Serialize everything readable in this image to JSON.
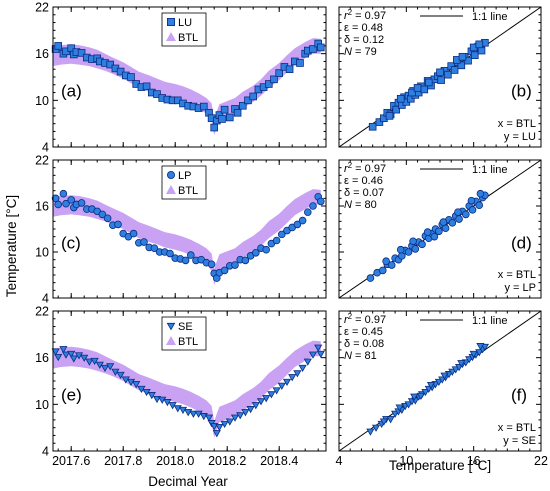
{
  "figure": {
    "y_axis_label": "Temperature [°C]",
    "x_axis_label_left": "Decimal Year",
    "x_axis_label_right": "Temperature [°C]",
    "time_ticks": [
      "2017.6",
      "2017.8",
      "2018.0",
      "2018.2",
      "2018.4"
    ],
    "temp_ticks": [
      "4",
      "10",
      "16",
      "22"
    ],
    "colors": {
      "band": "#c9a2f4",
      "marker": "#2f7fe0",
      "marker_edge": "#0a2c80",
      "axis": "#000000"
    }
  },
  "chart_data": [
    {
      "panel": "a",
      "panel_label": "(a)",
      "type": "scatter",
      "xlim": [
        2017.53,
        2018.58
      ],
      "ylim": [
        4,
        22
      ],
      "series": [
        {
          "name": "LU",
          "marker": "square"
        },
        {
          "name": "BTL",
          "marker": "band"
        }
      ],
      "btl_band": {
        "x": [
          2017.53,
          2017.56,
          2017.6,
          2017.63,
          2017.67,
          2017.7,
          2017.73,
          2017.76,
          2017.8,
          2017.83,
          2017.86,
          2017.9,
          2017.93,
          2017.96,
          2018.0,
          2018.03,
          2018.06,
          2018.09,
          2018.12,
          2018.14,
          2018.15,
          2018.16,
          2018.17,
          2018.2,
          2018.23,
          2018.26,
          2018.3,
          2018.33,
          2018.36,
          2018.4,
          2018.43,
          2018.46,
          2018.5,
          2018.53,
          2018.56
        ],
        "lower": [
          14.4,
          14.6,
          14.7,
          14.6,
          14.4,
          14.1,
          13.8,
          13.4,
          12.8,
          12.2,
          11.6,
          11.1,
          10.8,
          10.4,
          10.1,
          9.8,
          9.4,
          8.9,
          8.3,
          7.3,
          5.5,
          6.5,
          7.5,
          7.9,
          8.3,
          9.0,
          9.8,
          10.6,
          11.6,
          12.6,
          13.6,
          14.6,
          15.4,
          16.0,
          16.0
        ],
        "upper": [
          17.0,
          17.1,
          17.2,
          17.1,
          16.8,
          16.5,
          16.0,
          15.5,
          14.9,
          14.3,
          13.7,
          13.2,
          12.8,
          12.4,
          12.1,
          11.8,
          11.4,
          10.9,
          10.3,
          9.6,
          7.6,
          8.6,
          9.5,
          9.9,
          10.3,
          11.1,
          11.9,
          12.7,
          13.8,
          14.8,
          15.8,
          16.7,
          17.5,
          18.0,
          17.9
        ]
      },
      "observations": {
        "x": [
          2017.54,
          2017.55,
          2017.57,
          2017.58,
          2017.6,
          2017.61,
          2017.62,
          2017.64,
          2017.66,
          2017.68,
          2017.7,
          2017.71,
          2017.73,
          2017.75,
          2017.77,
          2017.79,
          2017.81,
          2017.83,
          2017.85,
          2017.87,
          2017.89,
          2017.91,
          2017.93,
          2017.95,
          2017.97,
          2017.99,
          2018.01,
          2018.03,
          2018.05,
          2018.07,
          2018.09,
          2018.11,
          2018.13,
          2018.14,
          2018.15,
          2018.16,
          2018.17,
          2018.18,
          2018.19,
          2018.21,
          2018.23,
          2018.24,
          2018.26,
          2018.28,
          2018.3,
          2018.32,
          2018.34,
          2018.36,
          2018.38,
          2018.4,
          2018.42,
          2018.44,
          2018.46,
          2018.48,
          2018.5,
          2018.51,
          2018.53,
          2018.55,
          2018.56
        ],
        "y": [
          16.6,
          17.0,
          16.0,
          16.3,
          16.7,
          15.9,
          16.2,
          16.1,
          15.5,
          15.3,
          15.4,
          15.0,
          14.8,
          14.6,
          14.1,
          13.7,
          13.2,
          13.0,
          12.1,
          11.7,
          11.8,
          11.0,
          10.8,
          10.3,
          10.1,
          10.0,
          10.0,
          9.6,
          9.3,
          9.2,
          9.0,
          9.2,
          8.4,
          7.7,
          6.5,
          7.4,
          8.1,
          7.6,
          8.8,
          7.8,
          8.9,
          8.4,
          9.3,
          10.0,
          10.5,
          11.4,
          11.7,
          12.1,
          12.7,
          13.5,
          14.3,
          14.0,
          15.0,
          14.8,
          16.0,
          16.4,
          16.6,
          17.3,
          16.8
        ]
      }
    },
    {
      "panel": "b",
      "panel_label": "(b)",
      "type": "scatter",
      "xlim": [
        4,
        22
      ],
      "ylim": [
        4,
        22
      ],
      "stats": {
        "r2": "0.97",
        "eps": "0.48",
        "delta": "0.12",
        "n": "79"
      },
      "legend": "1:1 line",
      "axis_note": [
        "x = BTL",
        "y = LU"
      ],
      "marker": "square",
      "observations": {
        "x": [
          7.0,
          7.6,
          8.0,
          8.3,
          8.6,
          8.9,
          9.1,
          9.3,
          9.6,
          9.8,
          10.0,
          10.2,
          10.4,
          10.6,
          10.8,
          11.1,
          11.3,
          11.6,
          11.9,
          12.2,
          12.5,
          12.8,
          13.1,
          13.4,
          13.7,
          14.0,
          14.3,
          14.6,
          14.9,
          15.2,
          15.5,
          15.8,
          16.1,
          16.4,
          16.7,
          17.0,
          9.5,
          10.5,
          12.0,
          13.0,
          14.5,
          15.0,
          16.0,
          16.5,
          8.5,
          11.0
        ],
        "y": [
          6.6,
          7.2,
          7.7,
          8.4,
          8.2,
          9.3,
          8.8,
          9.7,
          9.4,
          10.4,
          9.8,
          10.6,
          10.2,
          11.2,
          10.7,
          11.0,
          11.8,
          11.4,
          12.5,
          11.9,
          12.7,
          13.1,
          12.6,
          13.8,
          13.3,
          14.4,
          13.9,
          14.9,
          14.5,
          15.6,
          15.1,
          16.3,
          15.8,
          16.9,
          16.4,
          17.4,
          10.2,
          11.0,
          12.3,
          13.6,
          15.2,
          15.6,
          16.8,
          17.2,
          8.0,
          11.6
        ]
      }
    },
    {
      "panel": "c",
      "panel_label": "(c)",
      "type": "scatter",
      "xlim": [
        2017.53,
        2018.58
      ],
      "ylim": [
        4,
        22
      ],
      "series": [
        {
          "name": "LP",
          "marker": "circle"
        },
        {
          "name": "BTL",
          "marker": "band"
        }
      ],
      "btl_band": {
        "x": [
          2017.53,
          2017.56,
          2017.6,
          2017.63,
          2017.67,
          2017.7,
          2017.73,
          2017.76,
          2017.8,
          2017.83,
          2017.86,
          2017.9,
          2017.93,
          2017.96,
          2018.0,
          2018.03,
          2018.06,
          2018.09,
          2018.12,
          2018.14,
          2018.15,
          2018.16,
          2018.17,
          2018.2,
          2018.23,
          2018.26,
          2018.3,
          2018.33,
          2018.36,
          2018.4,
          2018.43,
          2018.46,
          2018.5,
          2018.53,
          2018.56
        ],
        "lower": [
          14.6,
          14.8,
          14.9,
          14.8,
          14.6,
          14.3,
          14.0,
          13.6,
          13.0,
          12.4,
          11.8,
          11.3,
          11.0,
          10.6,
          10.3,
          10.0,
          9.6,
          9.1,
          8.5,
          7.5,
          5.7,
          6.7,
          7.7,
          8.1,
          8.5,
          9.2,
          10.0,
          10.8,
          11.8,
          12.8,
          13.8,
          14.8,
          15.6,
          16.2,
          16.2
        ],
        "upper": [
          17.2,
          17.3,
          17.4,
          17.3,
          17.0,
          16.7,
          16.2,
          15.7,
          15.1,
          14.5,
          13.9,
          13.4,
          13.0,
          12.6,
          12.3,
          12.0,
          11.6,
          11.1,
          10.5,
          9.8,
          7.8,
          8.8,
          9.7,
          10.1,
          10.5,
          11.3,
          12.1,
          12.9,
          14.0,
          15.0,
          16.0,
          16.9,
          17.7,
          18.2,
          18.1
        ]
      },
      "observations": {
        "x": [
          2017.54,
          2017.55,
          2017.57,
          2017.58,
          2017.6,
          2017.61,
          2017.62,
          2017.64,
          2017.66,
          2017.68,
          2017.7,
          2017.72,
          2017.74,
          2017.76,
          2017.78,
          2017.8,
          2017.82,
          2017.84,
          2017.86,
          2017.88,
          2017.9,
          2017.92,
          2017.94,
          2017.96,
          2017.98,
          2018.0,
          2018.02,
          2018.04,
          2018.06,
          2018.08,
          2018.1,
          2018.12,
          2018.14,
          2018.15,
          2018.16,
          2018.17,
          2018.19,
          2018.21,
          2018.23,
          2018.25,
          2018.27,
          2018.29,
          2018.31,
          2018.33,
          2018.35,
          2018.37,
          2018.39,
          2018.41,
          2018.43,
          2018.45,
          2018.47,
          2018.49,
          2018.51,
          2018.53,
          2018.55,
          2018.56
        ],
        "y": [
          17.0,
          16.2,
          17.6,
          16.3,
          16.8,
          15.8,
          16.2,
          16.4,
          15.6,
          15.6,
          15.3,
          14.9,
          14.4,
          13.5,
          13.6,
          12.4,
          12.0,
          12.4,
          11.2,
          11.3,
          10.6,
          10.5,
          10.0,
          10.0,
          9.8,
          9.2,
          9.1,
          8.9,
          9.6,
          8.9,
          9.0,
          8.6,
          8.4,
          7.2,
          6.6,
          7.3,
          7.6,
          8.2,
          8.3,
          9.0,
          8.9,
          9.5,
          9.9,
          10.5,
          10.3,
          11.1,
          11.5,
          12.3,
          12.8,
          13.2,
          13.6,
          14.1,
          15.2,
          16.0,
          17.2,
          16.6
        ]
      }
    },
    {
      "panel": "d",
      "panel_label": "(d)",
      "type": "scatter",
      "xlim": [
        4,
        22
      ],
      "ylim": [
        4,
        22
      ],
      "stats": {
        "r2": "0.97",
        "eps": "0.46",
        "delta": "0.07",
        "n": "80"
      },
      "legend": "1:1 line",
      "axis_note": [
        "x = BTL",
        "y = LP"
      ],
      "marker": "circle",
      "observations": {
        "x": [
          6.8,
          7.4,
          7.9,
          8.3,
          8.7,
          9.0,
          9.3,
          9.6,
          9.9,
          10.2,
          10.5,
          10.8,
          11.1,
          11.4,
          11.7,
          12.0,
          12.3,
          12.6,
          12.9,
          13.2,
          13.5,
          13.8,
          14.1,
          14.4,
          14.7,
          15.0,
          15.3,
          15.6,
          15.9,
          16.2,
          16.5,
          16.8,
          17.0,
          9.5,
          10.6,
          11.9,
          13.3,
          14.6,
          15.8,
          16.6,
          8.2,
          12.5
        ],
        "y": [
          6.6,
          7.3,
          7.6,
          8.4,
          8.3,
          9.2,
          9.0,
          9.5,
          10.2,
          10.0,
          10.8,
          10.4,
          11.3,
          11.0,
          12.1,
          11.8,
          12.4,
          13.0,
          12.7,
          13.6,
          13.1,
          14.2,
          13.8,
          14.7,
          14.3,
          15.3,
          14.9,
          16.0,
          15.5,
          16.6,
          16.1,
          17.1,
          17.4,
          10.3,
          11.4,
          12.6,
          13.9,
          15.2,
          16.7,
          17.6,
          8.8,
          12.0
        ]
      }
    },
    {
      "panel": "e",
      "panel_label": "(e)",
      "type": "scatter",
      "xlim": [
        2017.53,
        2018.58
      ],
      "ylim": [
        4,
        22
      ],
      "series": [
        {
          "name": "SE",
          "marker": "triangle-down"
        },
        {
          "name": "BTL",
          "marker": "band"
        }
      ],
      "btl_band": {
        "x": [
          2017.53,
          2017.56,
          2017.6,
          2017.63,
          2017.67,
          2017.7,
          2017.73,
          2017.76,
          2017.8,
          2017.83,
          2017.86,
          2017.9,
          2017.93,
          2017.96,
          2018.0,
          2018.03,
          2018.06,
          2018.09,
          2018.12,
          2018.14,
          2018.15,
          2018.16,
          2018.17,
          2018.2,
          2018.23,
          2018.26,
          2018.3,
          2018.33,
          2018.36,
          2018.4,
          2018.43,
          2018.46,
          2018.5,
          2018.53,
          2018.56
        ],
        "lower": [
          14.6,
          14.8,
          14.9,
          14.8,
          14.6,
          14.3,
          14.0,
          13.6,
          13.0,
          12.4,
          11.8,
          11.3,
          11.0,
          10.6,
          10.3,
          10.0,
          9.6,
          9.1,
          8.5,
          7.5,
          5.7,
          6.7,
          7.7,
          8.1,
          8.5,
          9.2,
          10.0,
          10.8,
          11.8,
          12.8,
          13.8,
          14.8,
          15.6,
          16.2,
          16.2
        ],
        "upper": [
          17.2,
          17.3,
          17.4,
          17.3,
          17.0,
          16.7,
          16.2,
          15.7,
          15.1,
          14.5,
          13.9,
          13.4,
          13.0,
          12.6,
          12.3,
          12.0,
          11.6,
          11.1,
          10.5,
          9.8,
          7.8,
          8.8,
          9.7,
          10.1,
          10.5,
          11.3,
          12.1,
          12.9,
          14.0,
          15.0,
          16.0,
          16.9,
          17.7,
          18.2,
          18.1
        ]
      },
      "observations": {
        "x": [
          2017.54,
          2017.55,
          2017.57,
          2017.58,
          2017.6,
          2017.61,
          2017.63,
          2017.65,
          2017.67,
          2017.69,
          2017.71,
          2017.73,
          2017.75,
          2017.77,
          2017.79,
          2017.81,
          2017.83,
          2017.85,
          2017.87,
          2017.89,
          2017.91,
          2017.93,
          2017.95,
          2017.97,
          2017.99,
          2018.01,
          2018.03,
          2018.05,
          2018.07,
          2018.09,
          2018.11,
          2018.13,
          2018.14,
          2018.15,
          2018.16,
          2018.17,
          2018.19,
          2018.21,
          2018.23,
          2018.25,
          2018.27,
          2018.29,
          2018.31,
          2018.33,
          2018.35,
          2018.37,
          2018.39,
          2018.41,
          2018.43,
          2018.45,
          2018.47,
          2018.49,
          2018.51,
          2018.53,
          2018.55,
          2018.56
        ],
        "y": [
          16.8,
          16.1,
          17.1,
          16.4,
          16.5,
          15.9,
          16.3,
          16.0,
          15.5,
          15.6,
          15.1,
          14.7,
          14.9,
          14.2,
          13.8,
          13.2,
          12.9,
          12.6,
          12.0,
          11.6,
          11.2,
          10.7,
          10.6,
          10.3,
          9.9,
          9.5,
          9.3,
          9.0,
          8.8,
          8.8,
          8.5,
          8.3,
          7.6,
          7.2,
          6.3,
          7.1,
          7.5,
          7.8,
          8.3,
          8.6,
          9.0,
          9.4,
          9.9,
          10.4,
          10.8,
          11.3,
          11.8,
          12.4,
          12.9,
          13.5,
          14.0,
          14.7,
          15.5,
          16.4,
          17.3,
          16.5
        ]
      }
    },
    {
      "panel": "f",
      "panel_label": "(f)",
      "type": "scatter",
      "xlim": [
        4,
        22
      ],
      "ylim": [
        4,
        22
      ],
      "stats": {
        "r2": "0.97",
        "eps": "0.45",
        "delta": "0.08",
        "n": "81"
      },
      "legend": "1:1 line",
      "axis_note": [
        "x = BTL",
        "y = SE"
      ],
      "marker": "triangle-down",
      "observations": {
        "x": [
          6.8,
          7.3,
          7.8,
          8.2,
          8.6,
          9.0,
          9.3,
          9.6,
          9.9,
          10.2,
          10.5,
          10.8,
          11.1,
          11.4,
          11.7,
          12.0,
          12.3,
          12.6,
          12.9,
          13.2,
          13.5,
          13.8,
          14.1,
          14.4,
          14.7,
          15.0,
          15.3,
          15.6,
          15.9,
          16.2,
          16.5,
          16.8,
          17.0,
          9.4,
          10.7,
          12.2,
          13.4,
          14.9,
          16.0,
          16.6,
          8.0,
          11.3
        ],
        "y": [
          6.5,
          7.0,
          7.5,
          8.1,
          8.1,
          8.8,
          9.1,
          9.3,
          9.8,
          10.0,
          10.4,
          10.5,
          11.0,
          11.3,
          11.6,
          12.0,
          12.2,
          12.6,
          12.9,
          13.2,
          13.5,
          13.9,
          14.2,
          14.5,
          14.8,
          15.2,
          15.4,
          15.8,
          16.1,
          16.4,
          16.7,
          17.1,
          17.4,
          9.6,
          11.0,
          12.5,
          13.7,
          15.3,
          16.5,
          17.5,
          7.8,
          11.1
        ]
      }
    }
  ]
}
